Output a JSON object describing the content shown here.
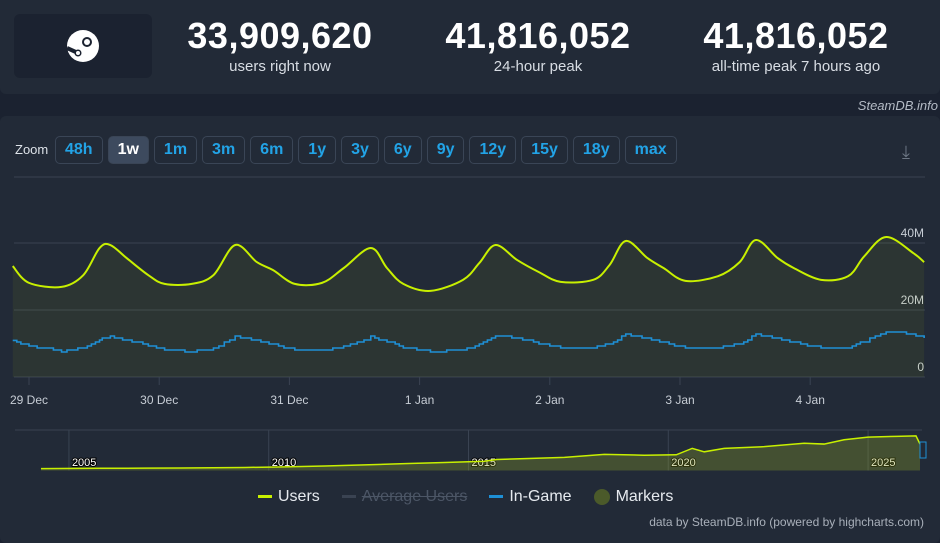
{
  "stats": [
    {
      "value": "33,909,620",
      "label": "users right now"
    },
    {
      "value": "41,816,052",
      "label": "24-hour peak"
    },
    {
      "value": "41,816,052",
      "label": "all-time peak 7 hours ago"
    }
  ],
  "credit": "SteamDB.info",
  "zoom": {
    "label": "Zoom",
    "buttons": [
      "48h",
      "1w",
      "1m",
      "3m",
      "6m",
      "1y",
      "3y",
      "6y",
      "9y",
      "12y",
      "15y",
      "18y",
      "max"
    ],
    "active": "1w"
  },
  "colors": {
    "users": "#c8f000",
    "in_game": "#1e90d6",
    "markers": "#4b5a2a",
    "accent": "#22a3e6"
  },
  "chart_data": {
    "type": "line",
    "x_ticks": [
      "29 Dec",
      "30 Dec",
      "31 Dec",
      "1 Jan",
      "2 Jan",
      "3 Jan",
      "4 Jan"
    ],
    "y_ticks": [
      "0",
      "20M",
      "40M"
    ],
    "ylim": [
      0,
      45
    ],
    "y_unit": "millions",
    "grid": true,
    "series": [
      {
        "name": "Users",
        "points": [
          [
            "12-28 21:00",
            33.1
          ],
          [
            "12-29 00:00",
            28.1
          ],
          [
            "12-29 06:00",
            26.9
          ],
          [
            "12-29 10:00",
            30.4
          ],
          [
            "12-29 13:00",
            38.5
          ],
          [
            "12-29 15:00",
            39.4
          ],
          [
            "12-29 18:00",
            35.5
          ],
          [
            "12-29 22:00",
            30.4
          ],
          [
            "12-30 01:00",
            27.8
          ],
          [
            "12-30 06:00",
            27.8
          ],
          [
            "12-30 10:00",
            30.4
          ],
          [
            "12-30 14:00",
            39.4
          ],
          [
            "12-30 18:00",
            34.3
          ],
          [
            "12-30 21:00",
            31.9
          ],
          [
            "12-31 01:00",
            27.8
          ],
          [
            "12-31 06:00",
            28.1
          ],
          [
            "12-31 10:00",
            32.5
          ],
          [
            "12-31 15:00",
            38.5
          ],
          [
            "12-31 18:00",
            32.5
          ],
          [
            "12-31 21:00",
            27.8
          ],
          [
            "01-01 02:00",
            25.7
          ],
          [
            "01-01 08:00",
            29.0
          ],
          [
            "01-01 11:00",
            34.0
          ],
          [
            "01-01 14:00",
            39.4
          ],
          [
            "01-01 18:00",
            34.9
          ],
          [
            "01-01 22:00",
            31.3
          ],
          [
            "01-02 02:00",
            28.4
          ],
          [
            "01-02 08:00",
            29.0
          ],
          [
            "01-02 11:00",
            33.4
          ],
          [
            "01-02 14:00",
            40.6
          ],
          [
            "01-02 18:00",
            35.5
          ],
          [
            "01-02 21:00",
            32.5
          ],
          [
            "01-03 01:00",
            28.7
          ],
          [
            "01-03 07:00",
            30.1
          ],
          [
            "01-03 11:00",
            34.3
          ],
          [
            "01-03 14:00",
            40.9
          ],
          [
            "01-03 18:00",
            35.5
          ],
          [
            "01-03 21:00",
            32.5
          ],
          [
            "01-04 02:00",
            29.0
          ],
          [
            "01-04 07:00",
            30.1
          ],
          [
            "01-04 10:00",
            36.1
          ],
          [
            "01-04 14:00",
            41.8
          ],
          [
            "01-04 19:00",
            37.0
          ],
          [
            "01-04 21:00",
            34.3
          ]
        ]
      },
      {
        "name": "Average Users",
        "hidden": true,
        "points": []
      },
      {
        "name": "In-Game",
        "points": [
          [
            "12-28 21:00",
            10.9
          ],
          [
            "12-29 00:00",
            9.2
          ],
          [
            "12-29 06:00",
            7.6
          ],
          [
            "12-29 10:00",
            8.7
          ],
          [
            "12-29 13:00",
            11.3
          ],
          [
            "12-29 15:00",
            12.0
          ],
          [
            "12-29 18:00",
            11.0
          ],
          [
            "12-29 22:00",
            9.4
          ],
          [
            "12-30 01:00",
            8.2
          ],
          [
            "12-30 06:00",
            7.6
          ],
          [
            "12-30 10:00",
            8.5
          ],
          [
            "12-30 14:00",
            12.0
          ],
          [
            "12-30 18:00",
            11.0
          ],
          [
            "12-30 21:00",
            9.6
          ],
          [
            "12-31 01:00",
            8.2
          ],
          [
            "12-31 06:00",
            7.9
          ],
          [
            "12-31 10:00",
            9.2
          ],
          [
            "12-31 15:00",
            12.0
          ],
          [
            "12-31 18:00",
            10.6
          ],
          [
            "12-31 21:00",
            8.8
          ],
          [
            "01-01 02:00",
            7.6
          ],
          [
            "01-01 08:00",
            8.2
          ],
          [
            "01-01 11:00",
            9.6
          ],
          [
            "01-01 14:00",
            12.3
          ],
          [
            "01-01 18:00",
            11.6
          ],
          [
            "01-01 22:00",
            9.9
          ],
          [
            "01-02 02:00",
            8.8
          ],
          [
            "01-02 08:00",
            8.8
          ],
          [
            "01-02 11:00",
            9.9
          ],
          [
            "01-02 14:00",
            12.7
          ],
          [
            "01-02 18:00",
            11.6
          ],
          [
            "01-02 21:00",
            10.3
          ],
          [
            "01-03 01:00",
            8.8
          ],
          [
            "01-03 07:00",
            8.8
          ],
          [
            "01-03 11:00",
            9.9
          ],
          [
            "01-03 14:00",
            12.7
          ],
          [
            "01-03 18:00",
            11.6
          ],
          [
            "01-03 21:00",
            10.3
          ],
          [
            "01-04 02:00",
            8.8
          ],
          [
            "01-04 07:00",
            8.8
          ],
          [
            "01-04 10:00",
            10.6
          ],
          [
            "01-04 14:00",
            13.7
          ],
          [
            "01-04 19:00",
            12.7
          ],
          [
            "01-04 21:00",
            11.9
          ]
        ]
      }
    ],
    "navigator": {
      "x_ticks": [
        "2005",
        "2010",
        "2015",
        "2020",
        "2025"
      ],
      "points": [
        [
          2003.9,
          0.4
        ],
        [
          2005.3,
          0.8
        ],
        [
          2006.5,
          1.0
        ],
        [
          2007.4,
          1.2
        ],
        [
          2009,
          1.8
        ],
        [
          2010,
          2.5
        ],
        [
          2011,
          3.5
        ],
        [
          2012,
          4.8
        ],
        [
          2013,
          6.2
        ],
        [
          2014,
          7.5
        ],
        [
          2015,
          9
        ],
        [
          2015.3,
          11
        ],
        [
          2016,
          12
        ],
        [
          2017,
          13.5
        ],
        [
          2018,
          17
        ],
        [
          2019,
          16
        ],
        [
          2019.8,
          16.5
        ],
        [
          2020.2,
          24
        ],
        [
          2020.5,
          20
        ],
        [
          2021,
          24
        ],
        [
          2022,
          26
        ],
        [
          2023,
          30
        ],
        [
          2023.5,
          29
        ],
        [
          2024,
          34
        ],
        [
          2024.6,
          37
        ],
        [
          2025.3,
          38
        ],
        [
          2025.8,
          38.5
        ],
        [
          2025.9,
          29
        ]
      ]
    }
  },
  "legend": [
    "Users",
    "Average Users",
    "In-Game",
    "Markers"
  ],
  "footer": "data by SteamDB.info (powered by highcharts.com)"
}
